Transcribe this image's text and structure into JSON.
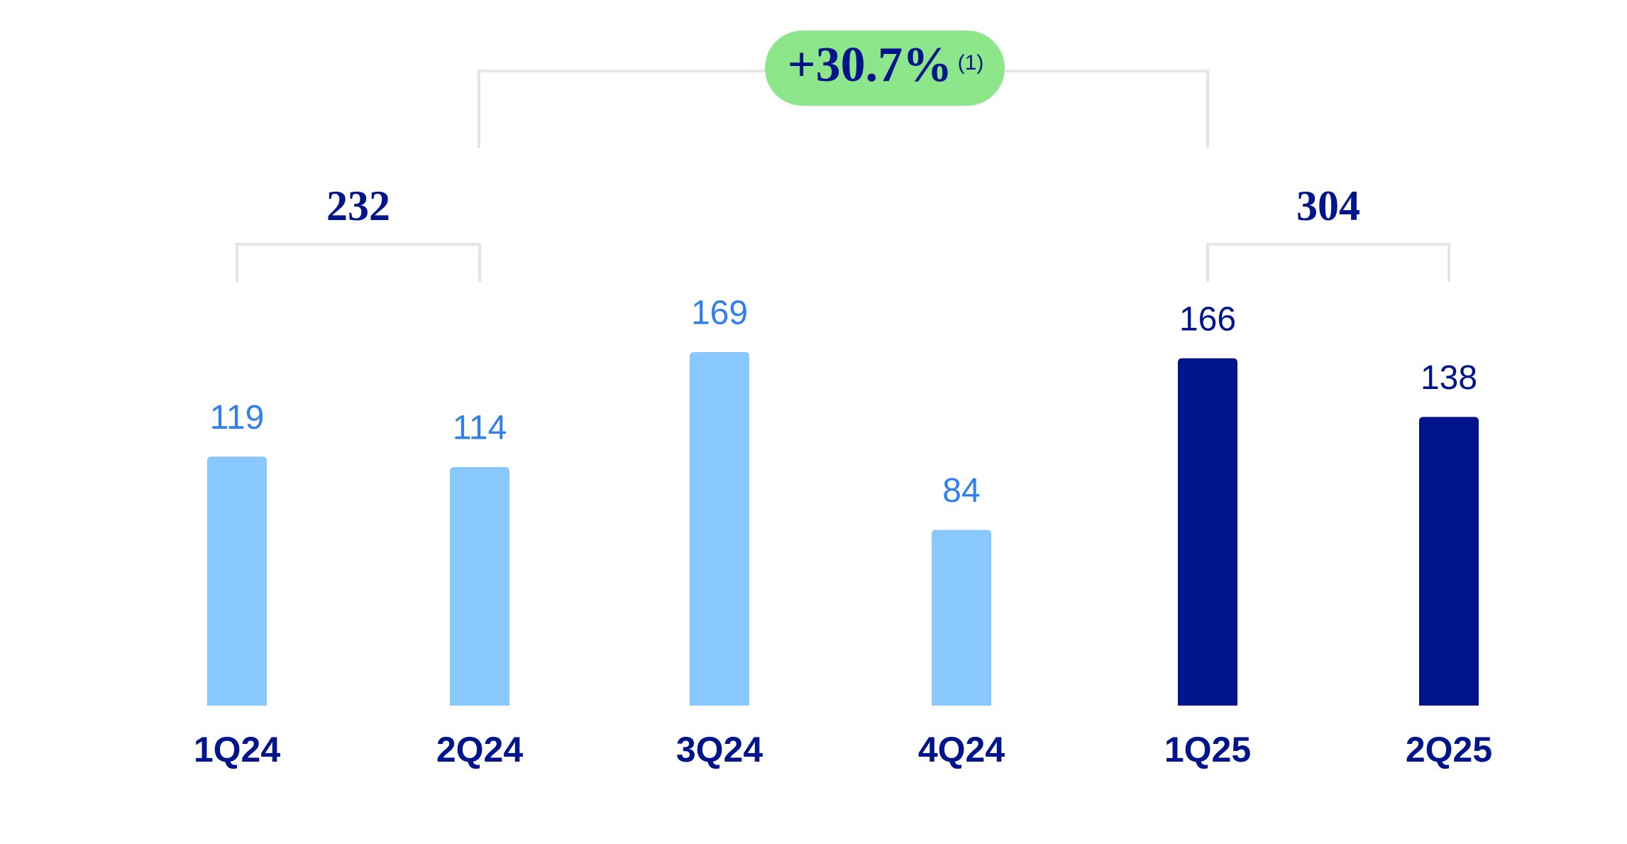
{
  "chart_data": {
    "type": "bar",
    "categories": [
      "1Q24",
      "2Q24",
      "3Q24",
      "4Q24",
      "1Q25",
      "2Q25"
    ],
    "values": [
      119,
      114,
      169,
      84,
      166,
      138
    ],
    "colors": [
      "#89c8ff",
      "#89c8ff",
      "#89c8ff",
      "#89c8ff",
      "#00148c",
      "#00148c"
    ],
    "value_label_colors": [
      "#2f80ed",
      "#2f80ed",
      "#2f80ed",
      "#2f80ed",
      "#00148c",
      "#00148c"
    ],
    "groups": [
      {
        "label": 232,
        "categories": [
          "1Q24",
          "2Q24"
        ]
      },
      {
        "label": 304,
        "categories": [
          "1Q25",
          "2Q25"
        ]
      }
    ],
    "growth": {
      "value": 30.7,
      "label": "+30.7%"
    },
    "growth_note": "(1)"
  }
}
